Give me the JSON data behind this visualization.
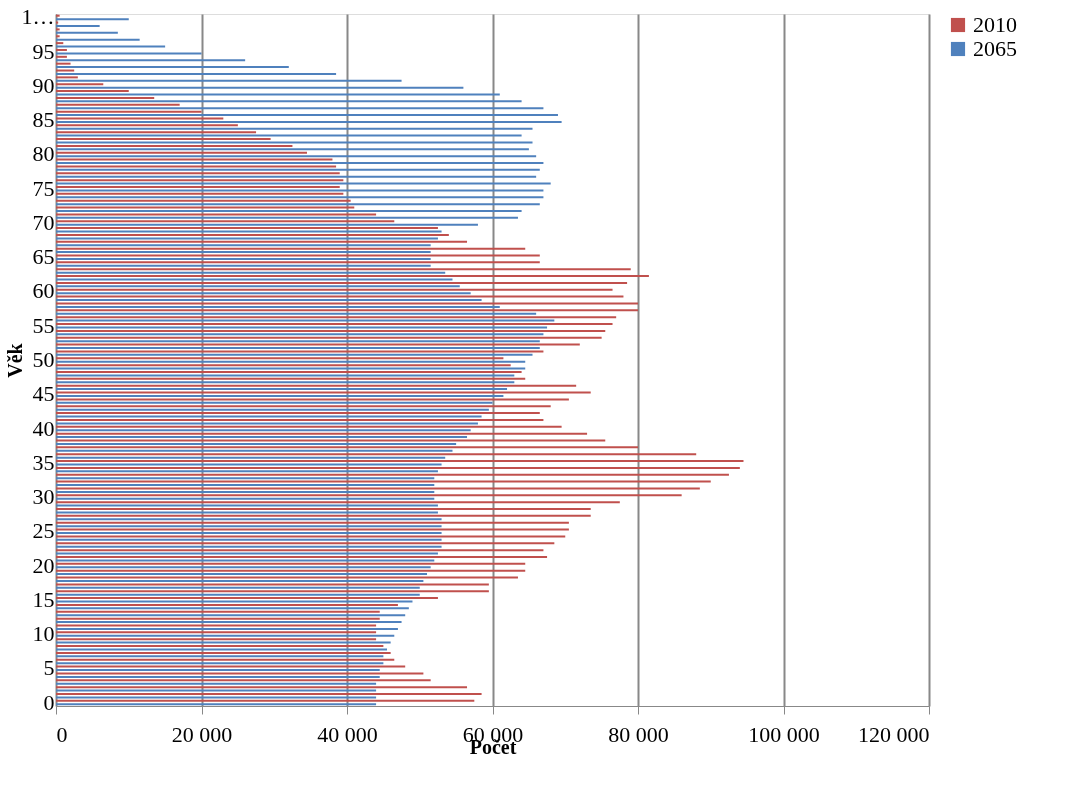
{
  "chart_data": {
    "type": "bar",
    "orientation": "horizontal",
    "xlabel": "Počet",
    "ylabel": "Věk",
    "categories": [
      "1…",
      null,
      null,
      null,
      null,
      "95",
      null,
      null,
      null,
      null,
      "90",
      null,
      null,
      null,
      null,
      "85",
      null,
      null,
      null,
      null,
      "80",
      null,
      null,
      null,
      null,
      "75",
      null,
      null,
      null,
      null,
      "70",
      null,
      null,
      null,
      null,
      "65",
      null,
      null,
      null,
      null,
      "60",
      null,
      null,
      null,
      null,
      "55",
      null,
      null,
      null,
      null,
      "50",
      null,
      null,
      null,
      null,
      "45",
      null,
      null,
      null,
      null,
      "40",
      null,
      null,
      null,
      null,
      "35",
      null,
      null,
      null,
      null,
      "30",
      null,
      null,
      null,
      null,
      "25",
      null,
      null,
      null,
      null,
      "20",
      null,
      null,
      null,
      null,
      "15",
      null,
      null,
      null,
      null,
      "10",
      null,
      null,
      null,
      null,
      "5",
      null,
      null,
      null,
      null,
      "0"
    ],
    "series": [
      {
        "name": "2010",
        "color": "#c0504d",
        "values": [
          500,
          300,
          500,
          500,
          1000,
          1500,
          1500,
          2000,
          2500,
          3000,
          6500,
          10000,
          13500,
          17000,
          20000,
          23000,
          25000,
          27500,
          29500,
          32500,
          34500,
          38000,
          38500,
          39000,
          39500,
          39000,
          39500,
          40500,
          41000,
          44000,
          46500,
          52500,
          54000,
          56500,
          64500,
          66500,
          66500,
          79000,
          81500,
          78500,
          76500,
          78000,
          80000,
          80000,
          77000,
          76500,
          75500,
          75000,
          72000,
          67000,
          61500,
          62500,
          64000,
          64500,
          71500,
          73500,
          70500,
          68000,
          66500,
          67000,
          69500,
          73000,
          75500,
          80000,
          88000,
          94500,
          94000,
          92500,
          90000,
          88500,
          86000,
          77500,
          73500,
          73500,
          70500,
          70500,
          70000,
          68500,
          67000,
          67500,
          64500,
          64500,
          63500,
          59500,
          59500,
          52500,
          47000,
          44500,
          44500,
          44000,
          44000,
          44000,
          45000,
          46000,
          46500,
          48000,
          50500,
          51500,
          56500,
          58500,
          57500
        ]
      },
      {
        "name": "2065",
        "color": "#4f81bd",
        "values": [
          10000,
          6000,
          8500,
          11500,
          15000,
          20000,
          26000,
          32000,
          38500,
          47500,
          56000,
          61000,
          64000,
          67000,
          69000,
          69500,
          65500,
          64000,
          65500,
          65000,
          66000,
          67000,
          66500,
          66000,
          68000,
          67000,
          67000,
          66500,
          64000,
          63500,
          58000,
          53000,
          52500,
          51500,
          51500,
          51500,
          51500,
          53500,
          54500,
          55500,
          57000,
          58500,
          61000,
          66000,
          68500,
          67500,
          67000,
          66500,
          66500,
          65500,
          64500,
          64500,
          63000,
          63000,
          62000,
          61500,
          60000,
          59500,
          58500,
          58000,
          57000,
          56500,
          55000,
          54500,
          53500,
          53000,
          52500,
          52000,
          52000,
          52000,
          52000,
          52500,
          52500,
          53000,
          53000,
          53000,
          53000,
          53000,
          52500,
          52000,
          51500,
          51000,
          50500,
          50000,
          50000,
          49000,
          48500,
          48000,
          47500,
          47000,
          46500,
          46000,
          45500,
          45000,
          45000,
          44500,
          44500,
          44000,
          44000,
          44000,
          44000
        ]
      }
    ],
    "xlim": [
      0,
      120000
    ],
    "xticks": [
      {
        "value": 0,
        "label": "0"
      },
      {
        "value": 20000,
        "label": "20 000"
      },
      {
        "value": 40000,
        "label": "40 000"
      },
      {
        "value": 60000,
        "label": "60 000"
      },
      {
        "value": 80000,
        "label": "80 000"
      },
      {
        "value": 100000,
        "label": "100 000"
      },
      {
        "value": 120000,
        "label": "120 000"
      }
    ],
    "grid": "x",
    "legend": "right"
  }
}
